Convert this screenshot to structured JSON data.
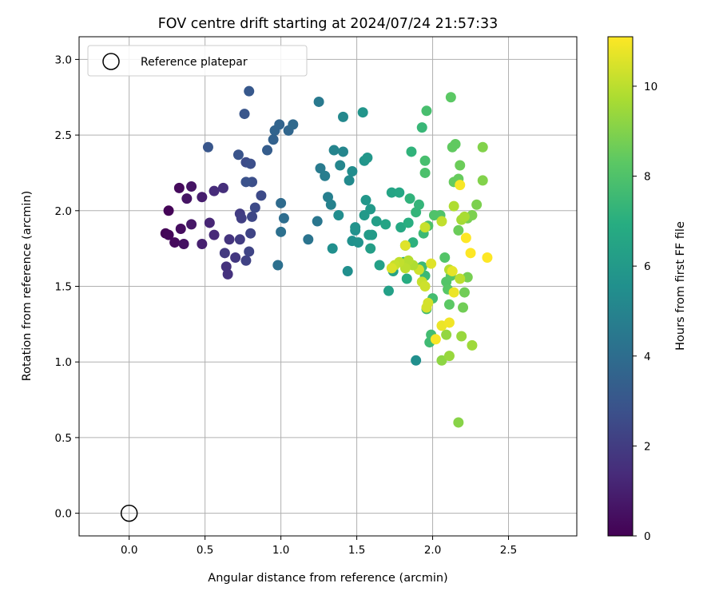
{
  "chart_data": {
    "type": "scatter",
    "title": "FOV centre drift starting at 2024/07/24 21:57:33",
    "xlabel": "Angular distance from reference (arcmin)",
    "ylabel": "Rotation from reference (arcmin)",
    "xlim": [
      -0.33,
      2.95
    ],
    "ylim": [
      -0.15,
      3.15
    ],
    "xticks": [
      "0.0",
      "0.5",
      "1.0",
      "1.5",
      "2.0",
      "2.5"
    ],
    "yticks": [
      "0.0",
      "0.5",
      "1.0",
      "1.5",
      "2.0",
      "2.5",
      "3.0"
    ],
    "grid": true,
    "legend": {
      "position": "top-left",
      "entries": [
        "Reference platepar"
      ]
    },
    "colorbar": {
      "label": "Hours from first FF file",
      "colormap": "viridis",
      "range": [
        0,
        11.1
      ],
      "ticks": [
        "0",
        "2",
        "4",
        "6",
        "8",
        "10"
      ]
    },
    "reference": {
      "x": 0.0,
      "y": 0.0
    },
    "points": [
      [
        0.24,
        1.85,
        0.1
      ],
      [
        0.26,
        1.84,
        0.2
      ],
      [
        0.3,
        1.79,
        0.3
      ],
      [
        0.34,
        1.88,
        0.4
      ],
      [
        0.36,
        1.78,
        0.5
      ],
      [
        0.38,
        2.08,
        0.6
      ],
      [
        0.26,
        2.0,
        0.1
      ],
      [
        0.33,
        2.15,
        0.3
      ],
      [
        0.41,
        2.16,
        0.6
      ],
      [
        0.41,
        1.91,
        0.7
      ],
      [
        0.48,
        2.09,
        0.9
      ],
      [
        0.48,
        1.78,
        1.0
      ],
      [
        0.53,
        1.92,
        1.2
      ],
      [
        0.56,
        1.84,
        1.3
      ],
      [
        0.56,
        2.13,
        1.4
      ],
      [
        0.62,
        2.15,
        1.5
      ],
      [
        0.64,
        1.63,
        1.6
      ],
      [
        0.65,
        1.58,
        1.6
      ],
      [
        0.66,
        1.81,
        1.7
      ],
      [
        0.7,
        1.69,
        1.8
      ],
      [
        0.63,
        1.72,
        1.9
      ],
      [
        0.73,
        1.81,
        2.0
      ],
      [
        0.73,
        1.98,
        2.0
      ],
      [
        0.74,
        1.95,
        2.1
      ],
      [
        0.77,
        1.67,
        2.2
      ],
      [
        0.79,
        1.73,
        2.3
      ],
      [
        0.8,
        1.85,
        2.3
      ],
      [
        0.81,
        1.96,
        2.4
      ],
      [
        0.83,
        2.02,
        2.5
      ],
      [
        0.87,
        2.1,
        2.5
      ],
      [
        0.77,
        2.32,
        2.6
      ],
      [
        0.8,
        2.31,
        2.7
      ],
      [
        0.81,
        2.19,
        2.7
      ],
      [
        0.77,
        2.19,
        2.8
      ],
      [
        0.72,
        2.37,
        2.9
      ],
      [
        0.76,
        2.64,
        3.0
      ],
      [
        0.52,
        2.42,
        3.0
      ],
      [
        0.79,
        2.79,
        3.1
      ],
      [
        0.91,
        2.4,
        3.3
      ],
      [
        0.95,
        2.47,
        3.5
      ],
      [
        0.96,
        2.53,
        3.6
      ],
      [
        0.99,
        2.57,
        3.6
      ],
      [
        1.05,
        2.53,
        3.7
      ],
      [
        1.08,
        2.57,
        3.8
      ],
      [
        1.0,
        2.05,
        3.9
      ],
      [
        1.02,
        1.95,
        4.0
      ],
      [
        1.0,
        1.86,
        4.1
      ],
      [
        0.98,
        1.64,
        4.1
      ],
      [
        1.18,
        1.81,
        4.3
      ],
      [
        1.24,
        1.93,
        4.4
      ],
      [
        1.25,
        2.72,
        4.5
      ],
      [
        1.26,
        2.28,
        4.6
      ],
      [
        1.29,
        2.23,
        4.7
      ],
      [
        1.31,
        2.09,
        4.8
      ],
      [
        1.33,
        2.04,
        4.9
      ],
      [
        1.35,
        2.4,
        5.0
      ],
      [
        1.39,
        2.3,
        5.1
      ],
      [
        1.41,
        2.39,
        5.1
      ],
      [
        1.41,
        2.62,
        5.2
      ],
      [
        1.45,
        2.2,
        5.3
      ],
      [
        1.47,
        2.26,
        5.4
      ],
      [
        1.38,
        1.97,
        5.4
      ],
      [
        1.34,
        1.75,
        5.5
      ],
      [
        1.44,
        1.6,
        5.5
      ],
      [
        1.47,
        1.8,
        5.6
      ],
      [
        1.49,
        1.87,
        5.6
      ],
      [
        1.49,
        1.89,
        5.7
      ],
      [
        1.51,
        1.79,
        5.7
      ],
      [
        1.54,
        2.65,
        5.8
      ],
      [
        1.55,
        2.33,
        5.8
      ],
      [
        1.57,
        2.35,
        5.9
      ],
      [
        1.56,
        2.07,
        5.9
      ],
      [
        1.59,
        2.01,
        6.0
      ],
      [
        1.55,
        1.97,
        6.0
      ],
      [
        1.58,
        1.84,
        6.1
      ],
      [
        1.6,
        1.84,
        6.1
      ],
      [
        1.63,
        1.93,
        6.2
      ],
      [
        1.59,
        1.75,
        6.2
      ],
      [
        1.65,
        1.64,
        6.3
      ],
      [
        1.71,
        1.47,
        6.3
      ],
      [
        1.74,
        1.6,
        6.4
      ],
      [
        1.73,
        2.12,
        6.5
      ],
      [
        1.69,
        1.91,
        6.5
      ],
      [
        1.78,
        2.12,
        6.6
      ],
      [
        1.79,
        1.89,
        6.7
      ],
      [
        1.81,
        1.66,
        6.8
      ],
      [
        1.83,
        1.55,
        6.9
      ],
      [
        1.82,
        1.77,
        7.0
      ],
      [
        1.84,
        1.92,
        7.0
      ],
      [
        1.87,
        1.79,
        7.1
      ],
      [
        1.89,
        1.01,
        5.5
      ],
      [
        1.85,
        2.08,
        7.2
      ],
      [
        1.86,
        2.39,
        7.2
      ],
      [
        1.89,
        1.99,
        7.3
      ],
      [
        1.91,
        2.04,
        7.3
      ],
      [
        1.93,
        2.55,
        7.4
      ],
      [
        1.94,
        1.85,
        7.5
      ],
      [
        1.93,
        1.63,
        7.5
      ],
      [
        1.95,
        1.57,
        7.5
      ],
      [
        1.96,
        1.35,
        7.6
      ],
      [
        1.98,
        1.13,
        7.6
      ],
      [
        1.99,
        1.18,
        7.7
      ],
      [
        2.0,
        1.42,
        7.7
      ],
      [
        1.96,
        2.66,
        7.8
      ],
      [
        1.95,
        2.33,
        7.8
      ],
      [
        1.95,
        2.25,
        7.9
      ],
      [
        1.97,
        1.9,
        7.9
      ],
      [
        2.01,
        1.97,
        8.0
      ],
      [
        2.05,
        1.97,
        8.0
      ],
      [
        2.08,
        1.69,
        8.1
      ],
      [
        2.09,
        1.53,
        8.1
      ],
      [
        2.1,
        1.48,
        8.2
      ],
      [
        2.12,
        1.57,
        8.2
      ],
      [
        2.11,
        1.38,
        8.3
      ],
      [
        2.12,
        2.75,
        8.3
      ],
      [
        2.13,
        2.42,
        8.4
      ],
      [
        2.15,
        2.44,
        8.4
      ],
      [
        2.14,
        2.19,
        8.5
      ],
      [
        2.17,
        2.21,
        8.5
      ],
      [
        2.18,
        2.3,
        8.6
      ],
      [
        2.17,
        1.87,
        8.6
      ],
      [
        2.2,
        1.36,
        8.7
      ],
      [
        2.21,
        1.46,
        8.7
      ],
      [
        2.23,
        1.56,
        8.8
      ],
      [
        2.23,
        1.95,
        8.8
      ],
      [
        2.26,
        1.97,
        8.9
      ],
      [
        2.29,
        2.04,
        8.9
      ],
      [
        2.33,
        2.2,
        9.0
      ],
      [
        2.33,
        2.42,
        9.0
      ],
      [
        2.17,
        0.6,
        9.1
      ],
      [
        2.06,
        1.01,
        9.2
      ],
      [
        2.09,
        1.18,
        9.3
      ],
      [
        2.11,
        1.04,
        9.4
      ],
      [
        2.19,
        1.17,
        9.4
      ],
      [
        2.26,
        1.11,
        9.5
      ],
      [
        2.19,
        1.94,
        9.6
      ],
      [
        2.21,
        1.96,
        9.7
      ],
      [
        2.14,
        2.03,
        9.8
      ],
      [
        2.11,
        1.61,
        9.9
      ],
      [
        2.18,
        1.55,
        10.0
      ],
      [
        2.06,
        1.93,
        10.1
      ],
      [
        1.95,
        1.89,
        10.2
      ],
      [
        1.93,
        1.53,
        10.2
      ],
      [
        1.91,
        1.61,
        10.3
      ],
      [
        1.95,
        1.5,
        10.3
      ],
      [
        1.97,
        1.39,
        10.4
      ],
      [
        1.96,
        1.36,
        10.4
      ],
      [
        1.87,
        1.64,
        9.8
      ],
      [
        1.84,
        1.67,
        9.9
      ],
      [
        1.82,
        1.62,
        10.0
      ],
      [
        1.78,
        1.66,
        10.1
      ],
      [
        1.75,
        1.64,
        10.2
      ],
      [
        1.73,
        1.62,
        10.5
      ],
      [
        1.82,
        1.77,
        10.6
      ],
      [
        1.99,
        1.65,
        10.6
      ],
      [
        2.13,
        1.6,
        10.7
      ],
      [
        2.14,
        1.46,
        10.8
      ],
      [
        2.06,
        1.24,
        10.8
      ],
      [
        2.11,
        1.26,
        10.9
      ],
      [
        2.02,
        1.15,
        11.0
      ],
      [
        2.18,
        2.17,
        11.0
      ],
      [
        2.22,
        1.82,
        11.1
      ],
      [
        2.25,
        1.72,
        11.1
      ],
      [
        2.36,
        1.69,
        11.1
      ]
    ]
  }
}
